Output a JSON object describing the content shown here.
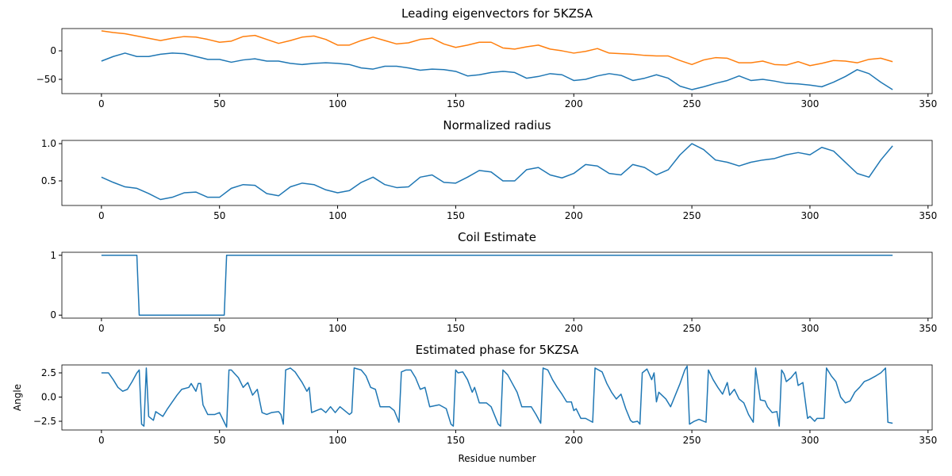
{
  "chart_data": [
    {
      "type": "line",
      "title": "Leading eigenvectors for 5KZSA",
      "x": [
        0,
        5,
        10,
        15,
        20,
        25,
        30,
        35,
        40,
        45,
        50,
        55,
        60,
        65,
        70,
        75,
        80,
        85,
        90,
        95,
        100,
        105,
        110,
        115,
        120,
        125,
        130,
        135,
        140,
        145,
        150,
        155,
        160,
        165,
        170,
        175,
        180,
        185,
        190,
        195,
        200,
        205,
        210,
        215,
        220,
        225,
        230,
        235,
        240,
        245,
        250,
        255,
        260,
        265,
        270,
        275,
        280,
        285,
        290,
        295,
        300,
        305,
        310,
        315,
        320,
        325,
        330,
        335
      ],
      "series": [
        {
          "color": "#1f77b4",
          "values": [
            -18,
            -10,
            -4,
            -10,
            -10,
            -6,
            -4,
            -5,
            -10,
            -15,
            -15,
            -20,
            -16,
            -14,
            -18,
            -18,
            -22,
            -24,
            -22,
            -21,
            -22,
            -24,
            -30,
            -32,
            -27,
            -27,
            -30,
            -34,
            -32,
            -33,
            -36,
            -44,
            -42,
            -38,
            -36,
            -38,
            -48,
            -45,
            -40,
            -42,
            -52,
            -50,
            -44,
            -40,
            -43,
            -52,
            -48,
            -42,
            -48,
            -62,
            -68,
            -63,
            -57,
            -52,
            -44,
            -52,
            -50,
            -53,
            -57,
            -58,
            -60,
            -63,
            -55,
            -45,
            -33,
            -40,
            -55,
            -68
          ]
        },
        {
          "color": "#ff7f0e",
          "values": [
            35,
            32,
            30,
            26,
            22,
            18,
            22,
            25,
            24,
            20,
            15,
            17,
            25,
            27,
            20,
            13,
            18,
            24,
            26,
            20,
            10,
            10,
            18,
            24,
            18,
            12,
            14,
            20,
            22,
            12,
            6,
            10,
            15,
            15,
            5,
            3,
            7,
            10,
            3,
            0,
            -4,
            -1,
            4,
            -4,
            -5,
            -6,
            -8,
            -9,
            -9,
            -17,
            -24,
            -16,
            -12,
            -13,
            -21,
            -21,
            -18,
            -24,
            -25,
            -19,
            -26,
            -22,
            -17,
            -18,
            -21,
            -15,
            -13,
            -19
          ]
        }
      ],
      "xlim": [
        -16.75,
        351.75
      ],
      "xticks": [
        0,
        50,
        100,
        150,
        200,
        250,
        300,
        350
      ],
      "ylim": [
        -75,
        39
      ],
      "yticks": [
        {
          "value": -50,
          "label": "−50"
        },
        0
      ]
    },
    {
      "type": "line",
      "title": "Normalized radius",
      "x": [
        0,
        5,
        10,
        15,
        20,
        25,
        30,
        35,
        40,
        45,
        50,
        55,
        60,
        65,
        70,
        75,
        80,
        85,
        90,
        95,
        100,
        105,
        110,
        115,
        120,
        125,
        130,
        135,
        140,
        145,
        150,
        155,
        160,
        165,
        170,
        175,
        180,
        185,
        190,
        195,
        200,
        205,
        210,
        215,
        220,
        225,
        230,
        235,
        240,
        245,
        250,
        255,
        260,
        265,
        270,
        275,
        280,
        285,
        290,
        295,
        300,
        305,
        310,
        315,
        320,
        325,
        330,
        335
      ],
      "series": [
        {
          "color": "#1f77b4",
          "values": [
            0.55,
            0.48,
            0.42,
            0.4,
            0.33,
            0.25,
            0.28,
            0.34,
            0.35,
            0.28,
            0.28,
            0.4,
            0.45,
            0.44,
            0.33,
            0.3,
            0.42,
            0.47,
            0.45,
            0.38,
            0.34,
            0.37,
            0.48,
            0.55,
            0.45,
            0.41,
            0.42,
            0.55,
            0.58,
            0.48,
            0.47,
            0.55,
            0.64,
            0.62,
            0.5,
            0.5,
            0.65,
            0.68,
            0.58,
            0.54,
            0.6,
            0.72,
            0.7,
            0.6,
            0.58,
            0.72,
            0.68,
            0.58,
            0.65,
            0.85,
            1.0,
            0.92,
            0.78,
            0.75,
            0.7,
            0.75,
            0.78,
            0.8,
            0.85,
            0.88,
            0.85,
            0.95,
            0.9,
            0.75,
            0.6,
            0.55,
            0.78,
            0.97
          ]
        }
      ],
      "xlim": [
        -16.75,
        351.75
      ],
      "xticks": [
        0,
        50,
        100,
        150,
        200,
        250,
        300,
        350
      ],
      "ylim": [
        0.17,
        1.043
      ],
      "yticks": [
        0.5,
        {
          "value": 1.0,
          "label": "1.0"
        }
      ]
    },
    {
      "type": "line",
      "title": "Coil Estimate",
      "x": [
        0,
        15,
        16,
        52,
        53,
        335
      ],
      "series": [
        {
          "color": "#1f77b4",
          "values": [
            1,
            1,
            0,
            0,
            1,
            1
          ]
        }
      ],
      "xlim": [
        -16.75,
        351.75
      ],
      "xticks": [
        0,
        50,
        100,
        150,
        200,
        250,
        300,
        350
      ],
      "ylim": [
        -0.05,
        1.05
      ],
      "yticks": [
        0,
        1
      ]
    },
    {
      "type": "line",
      "title": "Estimated phase for 5KZSA",
      "xlabel": "Residue number",
      "ylabel": "Angle",
      "x": [
        0,
        3,
        5,
        7,
        9,
        11,
        13,
        15,
        16,
        17,
        18,
        19,
        20,
        22,
        23,
        26,
        28,
        32,
        34,
        37,
        38,
        40,
        41,
        42,
        43,
        45,
        48,
        50,
        52,
        53,
        54,
        55,
        58,
        60,
        62,
        64,
        66,
        68,
        70,
        72,
        75,
        76,
        77,
        78,
        80,
        82,
        85,
        87,
        88,
        89,
        91,
        93,
        95,
        97,
        99,
        101,
        103,
        105,
        106,
        107,
        110,
        112,
        114,
        116,
        118,
        122,
        124,
        126,
        127,
        129,
        131,
        133,
        135,
        137,
        139,
        143,
        146,
        148,
        149,
        150,
        151,
        153,
        155,
        157,
        158,
        160,
        163,
        165,
        168,
        169,
        170,
        172,
        174,
        176,
        178,
        182,
        184,
        186,
        187,
        189,
        191,
        193,
        195,
        197,
        199,
        200,
        201,
        203,
        205,
        208,
        209,
        212,
        214,
        216,
        218,
        220,
        222,
        224,
        225,
        227,
        228,
        229,
        231,
        233,
        234,
        235,
        236,
        239,
        241,
        243,
        245,
        247,
        248,
        249,
        251,
        253,
        256,
        257,
        259,
        261,
        263,
        265,
        266,
        268,
        270,
        272,
        274,
        276,
        277,
        279,
        281,
        282,
        284,
        286,
        287,
        288,
        289,
        290,
        292,
        294,
        295,
        297,
        299,
        300,
        302,
        303,
        306,
        307,
        309,
        311,
        313,
        315,
        317,
        319,
        321,
        323,
        325,
        328,
        330,
        332,
        333,
        335
      ],
      "series": [
        {
          "color": "#1f77b4",
          "values": [
            2.5,
            2.5,
            1.8,
            1.0,
            0.6,
            0.8,
            1.6,
            2.5,
            2.8,
            -2.8,
            -3.0,
            3.0,
            -2.0,
            -2.4,
            -1.5,
            -2.0,
            -1.2,
            0.2,
            0.8,
            1.0,
            1.4,
            0.6,
            1.4,
            1.4,
            -0.8,
            -1.8,
            -1.8,
            -1.6,
            -2.6,
            -3.1,
            2.8,
            2.8,
            2.0,
            1.0,
            1.5,
            0.2,
            0.8,
            -1.6,
            -1.8,
            -1.6,
            -1.5,
            -1.8,
            -2.8,
            2.8,
            3.0,
            2.6,
            1.5,
            0.6,
            1.0,
            -1.6,
            -1.4,
            -1.2,
            -1.6,
            -1.0,
            -1.6,
            -1.0,
            -1.4,
            -1.8,
            -1.6,
            3.0,
            2.8,
            2.2,
            1.0,
            0.8,
            -1.0,
            -1.0,
            -1.4,
            -2.6,
            2.6,
            2.8,
            2.8,
            2.0,
            0.8,
            1.0,
            -1.0,
            -0.8,
            -1.2,
            -2.8,
            -3.0,
            2.8,
            2.5,
            2.6,
            1.8,
            0.5,
            1.0,
            -0.6,
            -0.6,
            -1.0,
            -2.8,
            -3.0,
            2.8,
            2.3,
            1.4,
            0.5,
            -1.0,
            -1.0,
            -1.8,
            -2.7,
            3.0,
            2.8,
            1.8,
            1.0,
            0.3,
            -0.5,
            -0.5,
            -1.4,
            -1.2,
            -2.2,
            -2.2,
            -2.6,
            3.0,
            2.6,
            1.4,
            0.5,
            -0.2,
            0.3,
            -1.2,
            -2.4,
            -2.6,
            -2.5,
            -2.8,
            2.5,
            2.9,
            1.8,
            2.5,
            -0.5,
            0.5,
            -0.2,
            -1.0,
            0.2,
            1.4,
            2.8,
            3.2,
            -2.8,
            -2.5,
            -2.3,
            -2.6,
            2.8,
            1.8,
            1.0,
            0.3,
            1.5,
            0.2,
            0.8,
            -0.2,
            -0.6,
            -1.8,
            -2.6,
            3.0,
            -0.3,
            -0.4,
            -1.0,
            -1.6,
            -1.5,
            -3.0,
            2.8,
            2.4,
            1.6,
            2.0,
            2.6,
            1.2,
            1.5,
            -2.2,
            -2.0,
            -2.5,
            -2.2,
            -2.2,
            3.0,
            2.2,
            1.6,
            0.0,
            -0.6,
            -0.4,
            0.5,
            1.0,
            1.6,
            1.8,
            2.2,
            2.5,
            3.0,
            -2.6,
            -2.7
          ]
        }
      ],
      "xlim": [
        -16.75,
        351.75
      ],
      "xticks": [
        0,
        50,
        100,
        150,
        200,
        250,
        300,
        350
      ],
      "ylim": [
        -3.4,
        3.32
      ],
      "yticks": [
        {
          "value": -2.5,
          "label": "−2.5"
        },
        {
          "value": 0,
          "label": "0.0"
        },
        {
          "value": 2.5,
          "label": "2.5"
        }
      ]
    }
  ]
}
